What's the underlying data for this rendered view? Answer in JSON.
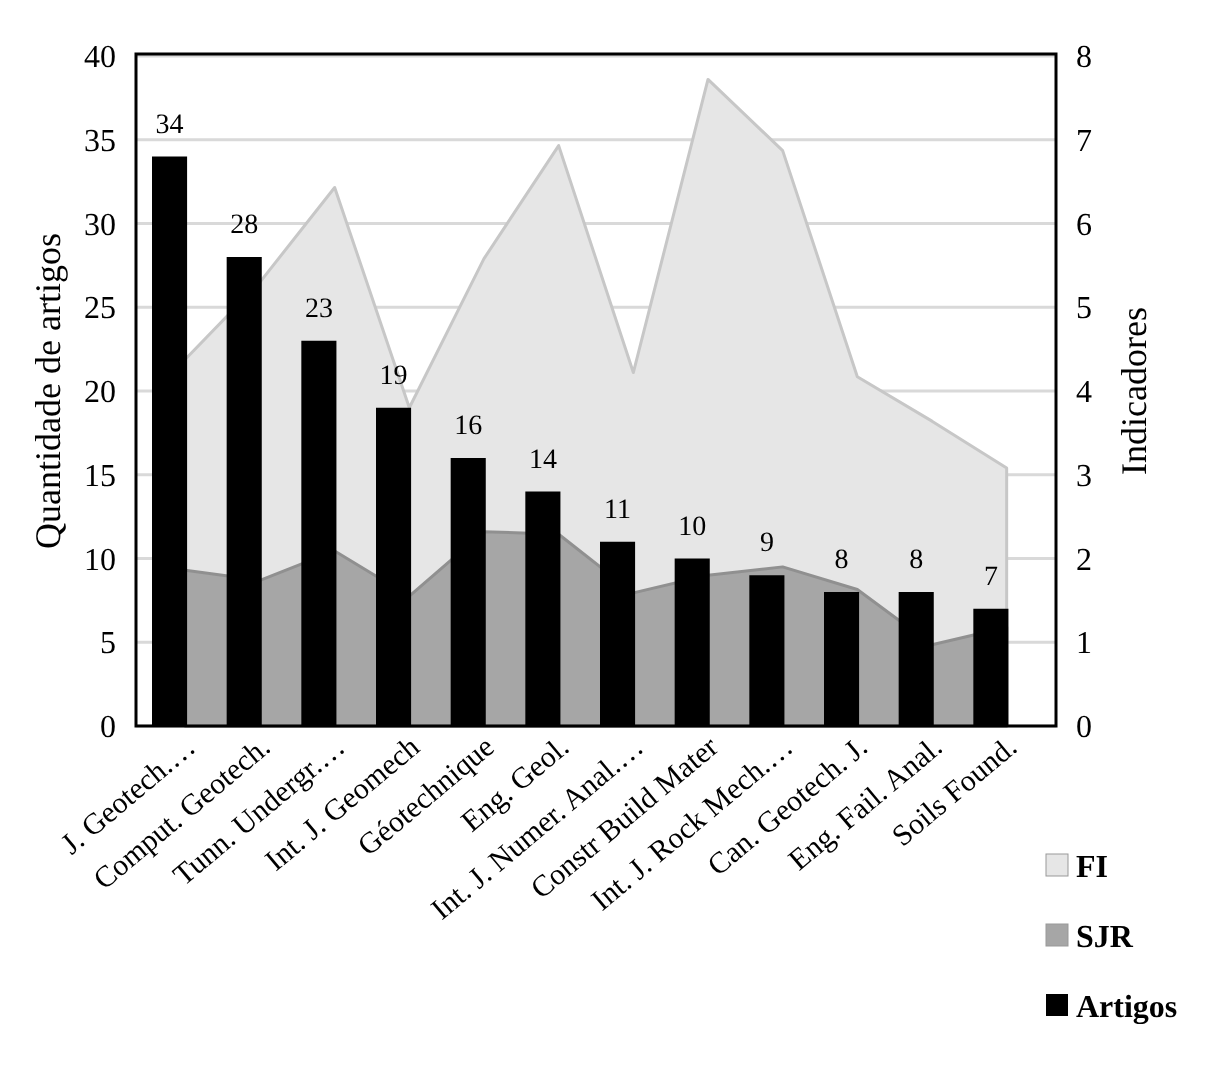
{
  "chart_data": {
    "type": "bar",
    "ylabel": "Quantidade de artigos",
    "y2label": "Indicadores",
    "categories": [
      "J. Geotech.…",
      "Comput. Geotech.",
      "Tunn. Undergr.…",
      "Int. J. Geomech",
      "Géotechnique",
      "Eng. Geol.",
      "Int. J. Numer. Anal.…",
      "Constr Build Mater",
      "Int. J. Rock Mech.…",
      "Can. Geotech. J.",
      "Eng. Fail. Anal.",
      "Soils Found."
    ],
    "series": [
      {
        "name": "FI",
        "type": "area",
        "axis": "y2",
        "color": "#e6e6e6",
        "values": [
          4.38,
          5.3,
          6.43,
          3.8,
          5.58,
          6.93,
          4.22,
          7.72,
          6.87,
          4.17,
          3.64,
          3.08
        ]
      },
      {
        "name": "SJR",
        "type": "area",
        "axis": "y2",
        "color": "#a6a6a6",
        "values": [
          1.86,
          1.74,
          2.09,
          1.55,
          2.32,
          2.29,
          1.59,
          1.8,
          1.9,
          1.63,
          0.97,
          1.18
        ]
      },
      {
        "name": "Artigos",
        "color": "#000000",
        "values": [
          34,
          28,
          23,
          19,
          16,
          14,
          11,
          10,
          9,
          8,
          8,
          7
        ],
        "value_labels": [
          "34",
          "28",
          "23",
          "19",
          "16",
          "14",
          "11",
          "10",
          "9",
          "8",
          "8",
          "7"
        ]
      }
    ],
    "ylim": [
      0,
      40
    ],
    "yticks": [
      0,
      5,
      10,
      15,
      20,
      25,
      30,
      35,
      40
    ],
    "y2lim": [
      0,
      8
    ],
    "y2ticks": [
      0,
      1,
      2,
      3,
      4,
      5,
      6,
      7,
      8
    ],
    "grid": "y",
    "legend": "bottom right"
  }
}
